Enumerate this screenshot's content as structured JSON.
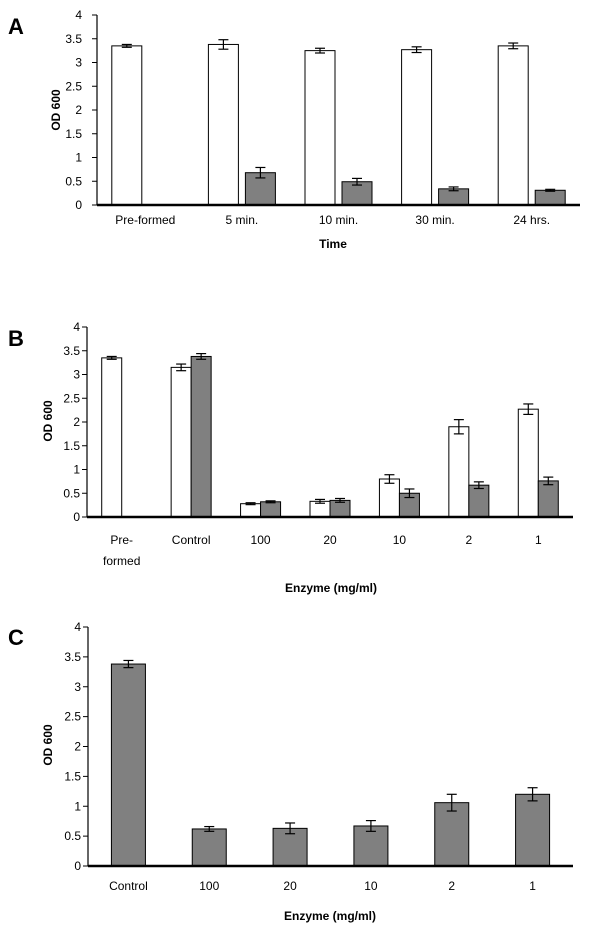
{
  "chart_data": [
    {
      "panel": "A",
      "type": "bar",
      "categories": [
        "Pre-formed",
        "5 min.",
        "10 min.",
        "30 min.",
        "24 hrs."
      ],
      "series": [
        {
          "values": [
            3.35,
            3.38,
            3.25,
            3.27,
            3.35
          ],
          "errors": [
            0.03,
            0.1,
            0.05,
            0.06,
            0.06
          ],
          "color": "#ffffff"
        },
        {
          "values": [
            null,
            0.68,
            0.49,
            0.34,
            0.31
          ],
          "errors": [
            null,
            0.11,
            0.07,
            0.04,
            0.02
          ],
          "color": "#808080"
        }
      ],
      "ylabel": "OD 600",
      "xlabel": "Time",
      "ylim": [
        0,
        4
      ],
      "yticks": [
        "0",
        "0.5",
        "1",
        "1.5",
        "2",
        "2.5",
        "3",
        "3.5",
        "4"
      ],
      "grid": false
    },
    {
      "panel": "B",
      "type": "bar",
      "categories": [
        "Pre-\nformed",
        "Control",
        "100",
        "20",
        "10",
        "2",
        "1"
      ],
      "series": [
        {
          "values": [
            3.35,
            3.15,
            0.28,
            0.33,
            0.8,
            1.9,
            2.27
          ],
          "errors": [
            0.03,
            0.07,
            0.02,
            0.04,
            0.09,
            0.15,
            0.11
          ],
          "color": "#ffffff"
        },
        {
          "values": [
            null,
            3.38,
            0.32,
            0.35,
            0.5,
            0.67,
            0.76
          ],
          "errors": [
            null,
            0.06,
            0.02,
            0.04,
            0.09,
            0.07,
            0.08
          ],
          "color": "#808080"
        }
      ],
      "ylabel": "OD 600",
      "xlabel": "Enzyme (mg/ml)",
      "ylim": [
        0,
        4
      ],
      "yticks": [
        "0",
        "0.5",
        "1",
        "1.5",
        "2",
        "2.5",
        "3",
        "3.5",
        "4"
      ],
      "grid": false
    },
    {
      "panel": "C",
      "type": "bar",
      "categories": [
        "Control",
        "100",
        "20",
        "10",
        "2",
        "1"
      ],
      "series": [
        {
          "values": [
            3.38,
            0.62,
            0.63,
            0.67,
            1.06,
            1.2
          ],
          "errors": [
            0.06,
            0.04,
            0.09,
            0.09,
            0.14,
            0.11
          ],
          "color": "#808080"
        }
      ],
      "ylabel": "OD 600",
      "xlabel": "Enzyme (mg/ml)",
      "ylim": [
        0,
        4
      ],
      "yticks": [
        "0",
        "0.5",
        "1",
        "1.5",
        "2",
        "2.5",
        "3",
        "3.5",
        "4"
      ],
      "grid": false
    }
  ]
}
